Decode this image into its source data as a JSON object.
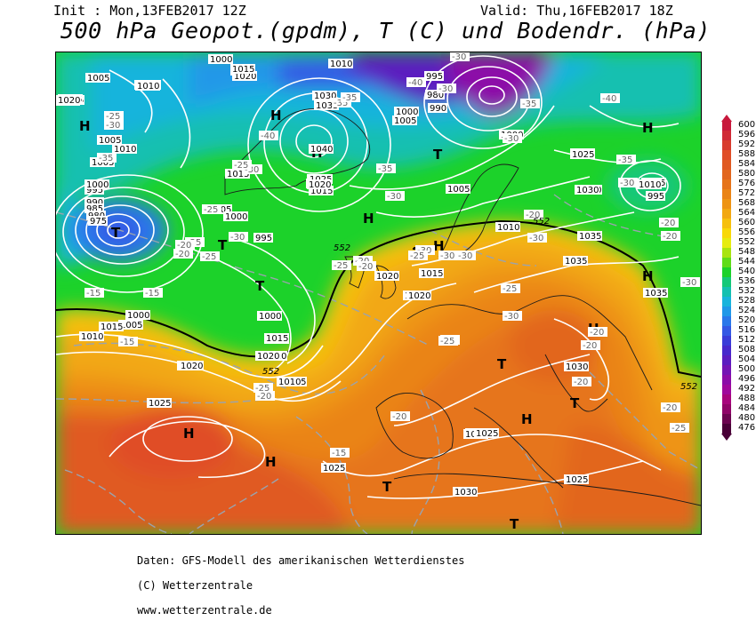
{
  "header": {
    "init": "Init : Mon,13FEB2017 12Z",
    "valid": "Valid: Thu,16FEB2017 18Z",
    "title": "500 hPa Geopot.(gpdm), T (C) und Bodendr. (hPa)"
  },
  "legend": {
    "values": [
      "600",
      "596",
      "592",
      "588",
      "584",
      "580",
      "576",
      "572",
      "568",
      "564",
      "560",
      "556",
      "552",
      "548",
      "544",
      "540",
      "536",
      "532",
      "528",
      "524",
      "520",
      "516",
      "512",
      "508",
      "504",
      "500",
      "496",
      "492",
      "488",
      "484",
      "480",
      "476"
    ],
    "colors": [
      "#c8183c",
      "#d02a36",
      "#d83c2e",
      "#e04e28",
      "#e05a22",
      "#e2661e",
      "#e6741a",
      "#ea8416",
      "#ee9414",
      "#f2a812",
      "#f6c00e",
      "#f8d808",
      "#e6ec10",
      "#a8e410",
      "#60dc18",
      "#1cd22a",
      "#14c878",
      "#14c0b0",
      "#18b4dc",
      "#2098e8",
      "#2a78ea",
      "#3458e4",
      "#3a3cd8",
      "#4828cc",
      "#5c1cc0",
      "#7414b4",
      "#8c0ca8",
      "#a0089c",
      "#a8047c",
      "#900468",
      "#6c0450",
      "#4a0038"
    ]
  },
  "map": {
    "pressure_labels": [
      "1000",
      "1010",
      "1010",
      "1015",
      "1020",
      "1005",
      "1010",
      "1015",
      "1010",
      "995",
      "980",
      "990",
      "1000",
      "1005",
      "1020",
      "1015",
      "1030",
      "1035",
      "1025",
      "1020",
      "1015",
      "1040",
      "1025",
      "1020",
      "1015",
      "1030",
      "1025",
      "1010",
      "1005",
      "1000",
      "1005",
      "1010",
      "1015",
      "1020",
      "1025",
      "1030",
      "995",
      "990",
      "985",
      "980",
      "975",
      "1005",
      "1000",
      "995",
      "1000",
      "1005",
      "1010",
      "1005",
      "1010",
      "1015",
      "1020",
      "1025",
      "1030",
      "1035",
      "1015",
      "1025",
      "1020",
      "1030",
      "1025",
      "1035",
      "1035",
      "1035",
      "1030",
      "1025",
      "1020",
      "1015",
      "1010",
      "1005",
      "1000",
      "995",
      "1010",
      "1015",
      "1000",
      "1005",
      "1010",
      "1020",
      "1015",
      "1020",
      "1025",
      "1025",
      "1030"
    ],
    "temp_labels": [
      "-35",
      "-40",
      "-30",
      "-35",
      "-25",
      "-30",
      "-35",
      "-30",
      "-40",
      "-35",
      "-30",
      "-35",
      "-30",
      "-40",
      "-30",
      "-25",
      "-25",
      "-25",
      "-35",
      "-30",
      "-20",
      "-30",
      "-25",
      "-30",
      "-20",
      "-20",
      "-15",
      "-15",
      "-15",
      "-20",
      "-25",
      "-30",
      "-25",
      "-20",
      "-25",
      "-30",
      "-20",
      "-20",
      "-20",
      "-25",
      "-20",
      "-15",
      "-20",
      "-20",
      "-25",
      "-30",
      "-20",
      "-30",
      "-25",
      "-20",
      "-25",
      "-30",
      "-20"
    ],
    "pressure_centers": [
      "H",
      "H",
      "H",
      "T",
      "T",
      "T",
      "H",
      "T",
      "T",
      "H",
      "T",
      "H",
      "T",
      "H",
      "T",
      "H",
      "H",
      "T",
      "H",
      "T",
      "H",
      "T"
    ],
    "contour_552_labels": [
      "552",
      "552",
      "552",
      "552"
    ]
  },
  "footer": {
    "line1": "Daten: GFS-Modell des amerikanischen Wetterdienstes",
    "line2": "(C) Wetterzentrale",
    "line3": "www.wetterzentrale.de"
  }
}
